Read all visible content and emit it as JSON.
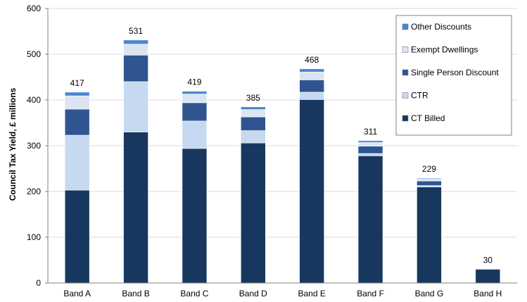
{
  "chart_data": {
    "type": "bar",
    "stacked": true,
    "title": "",
    "xlabel": "",
    "ylabel": "Council Tax Yield, £ millions",
    "ylim": [
      0,
      600
    ],
    "yticks": [
      "0",
      "100",
      "200",
      "300",
      "400",
      "500",
      "600"
    ],
    "grid": true,
    "legend_position": "top-right",
    "categories": [
      "Band A",
      "Band B",
      "Band C",
      "Band D",
      "Band E",
      "Band F",
      "Band G",
      "Band H"
    ],
    "totals": [
      "417",
      "531",
      "419",
      "385",
      "468",
      "311",
      "229",
      "30"
    ],
    "series": [
      {
        "name": "CT Billed",
        "color": "#17375e",
        "values": [
          203,
          330,
          294,
          306,
          401,
          278,
          210,
          30
        ]
      },
      {
        "name": "CTR",
        "color": "#c6d9f1",
        "values": [
          120,
          110,
          60,
          27,
          16,
          5,
          3,
          0
        ]
      },
      {
        "name": "Single Person Discount",
        "color": "#2f5591",
        "values": [
          57,
          58,
          40,
          30,
          27,
          16,
          10,
          0
        ]
      },
      {
        "name": "Exempt Dwellings",
        "color": "#dbe5f1",
        "values": [
          29,
          24,
          19,
          16,
          17,
          8,
          4,
          0
        ]
      },
      {
        "name": "Other Discounts",
        "color": "#4a86cf",
        "values": [
          8,
          9,
          6,
          6,
          7,
          4,
          2,
          0
        ]
      }
    ],
    "legend_order": [
      "Other Discounts",
      "Exempt Dwellings",
      "Single Person Discount",
      "CTR",
      "CT Billed"
    ]
  }
}
